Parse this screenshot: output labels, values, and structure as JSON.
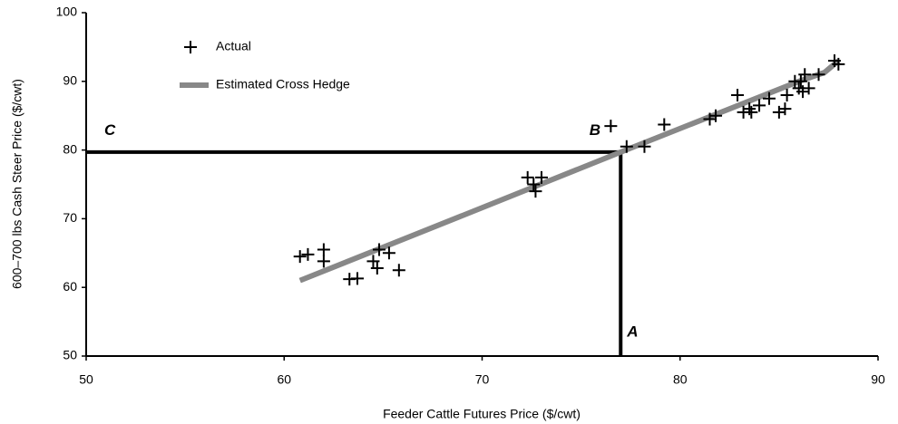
{
  "chart_data": {
    "type": "scatter",
    "x_label": "Feeder Cattle Futures Price ($/cwt)",
    "y_label": "600–700 lbs Cash Steer Price ($/cwt)",
    "xlim": [
      50,
      90
    ],
    "xticks": [
      50,
      60,
      70,
      80,
      90
    ],
    "ylim": [
      50,
      100
    ],
    "yticks": [
      50,
      60,
      70,
      80,
      90,
      100
    ],
    "legend": "upper left",
    "series": [
      {
        "name": "Actual",
        "type": "scatter",
        "color": "#000000",
        "x": [
          60.8,
          61.2,
          62.0,
          62.0,
          63.3,
          63.7,
          64.5,
          64.7,
          64.8,
          65.3,
          65.8,
          72.3,
          72.6,
          72.7,
          73.0,
          76.5,
          77.3,
          78.2,
          79.2,
          81.5,
          81.8,
          82.9,
          83.2,
          83.5,
          83.6,
          84.0,
          84.5,
          85.0,
          85.3,
          85.4,
          85.8,
          86.0,
          86.1,
          86.2,
          86.3,
          86.5,
          87.0,
          87.8,
          88.0
        ],
        "values": [
          64.5,
          64.8,
          65.5,
          63.8,
          61.2,
          61.3,
          63.8,
          62.8,
          65.5,
          65.0,
          62.5,
          76.0,
          75.0,
          74.0,
          76.0,
          83.5,
          80.5,
          80.5,
          83.7,
          84.5,
          85.0,
          88.0,
          85.5,
          86.0,
          85.5,
          86.5,
          87.5,
          85.5,
          86.0,
          88.0,
          90.0,
          89.0,
          90.0,
          88.5,
          91.0,
          89.0,
          91.0,
          93.0,
          92.5
        ]
      },
      {
        "name": "Estimated Cross Hedge",
        "type": "line",
        "color": "#888888",
        "x": [
          60.8,
          70,
          77,
          86,
          87.3,
          88
        ],
        "values": [
          61,
          71.6,
          79.7,
          90,
          91.3,
          93
        ]
      }
    ],
    "reference_point": {
      "x": 77,
      "y": 79.7
    },
    "annotations": [
      {
        "text": "A",
        "x": 77.6,
        "y": 53.4
      },
      {
        "text": "B",
        "x": 75.7,
        "y": 82.8
      },
      {
        "text": "C",
        "x": 51.2,
        "y": 82.8
      }
    ]
  }
}
